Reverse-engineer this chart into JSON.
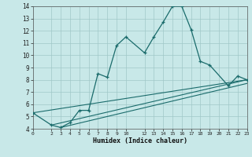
{
  "bg_color": "#c8e8e8",
  "grid_color": "#a0c8c8",
  "line_color": "#1a6b6b",
  "xlabel": "Humidex (Indice chaleur)",
  "xlim": [
    0,
    23
  ],
  "ylim": [
    4,
    14
  ],
  "yticks": [
    4,
    5,
    6,
    7,
    8,
    9,
    10,
    11,
    12,
    13,
    14
  ],
  "xticks": [
    0,
    2,
    3,
    4,
    5,
    6,
    7,
    8,
    9,
    10,
    12,
    13,
    14,
    15,
    16,
    17,
    18,
    19,
    20,
    21,
    22,
    23
  ],
  "main_x": [
    0,
    2,
    3,
    4,
    5,
    6,
    7,
    8,
    9,
    10,
    12,
    13,
    14,
    15,
    16,
    17,
    18,
    19,
    21,
    22,
    23
  ],
  "main_y": [
    5.3,
    4.3,
    4.1,
    4.5,
    5.5,
    5.5,
    8.5,
    8.2,
    10.8,
    11.5,
    10.2,
    11.5,
    12.7,
    14.0,
    14.0,
    12.1,
    9.5,
    9.2,
    7.5,
    8.3,
    8.0
  ],
  "line2_x": [
    0,
    23
  ],
  "line2_y": [
    5.3,
    8.0
  ],
  "line3_x": [
    2,
    23
  ],
  "line3_y": [
    4.3,
    8.0
  ],
  "line4_x": [
    3,
    23
  ],
  "line4_y": [
    4.1,
    7.7
  ]
}
